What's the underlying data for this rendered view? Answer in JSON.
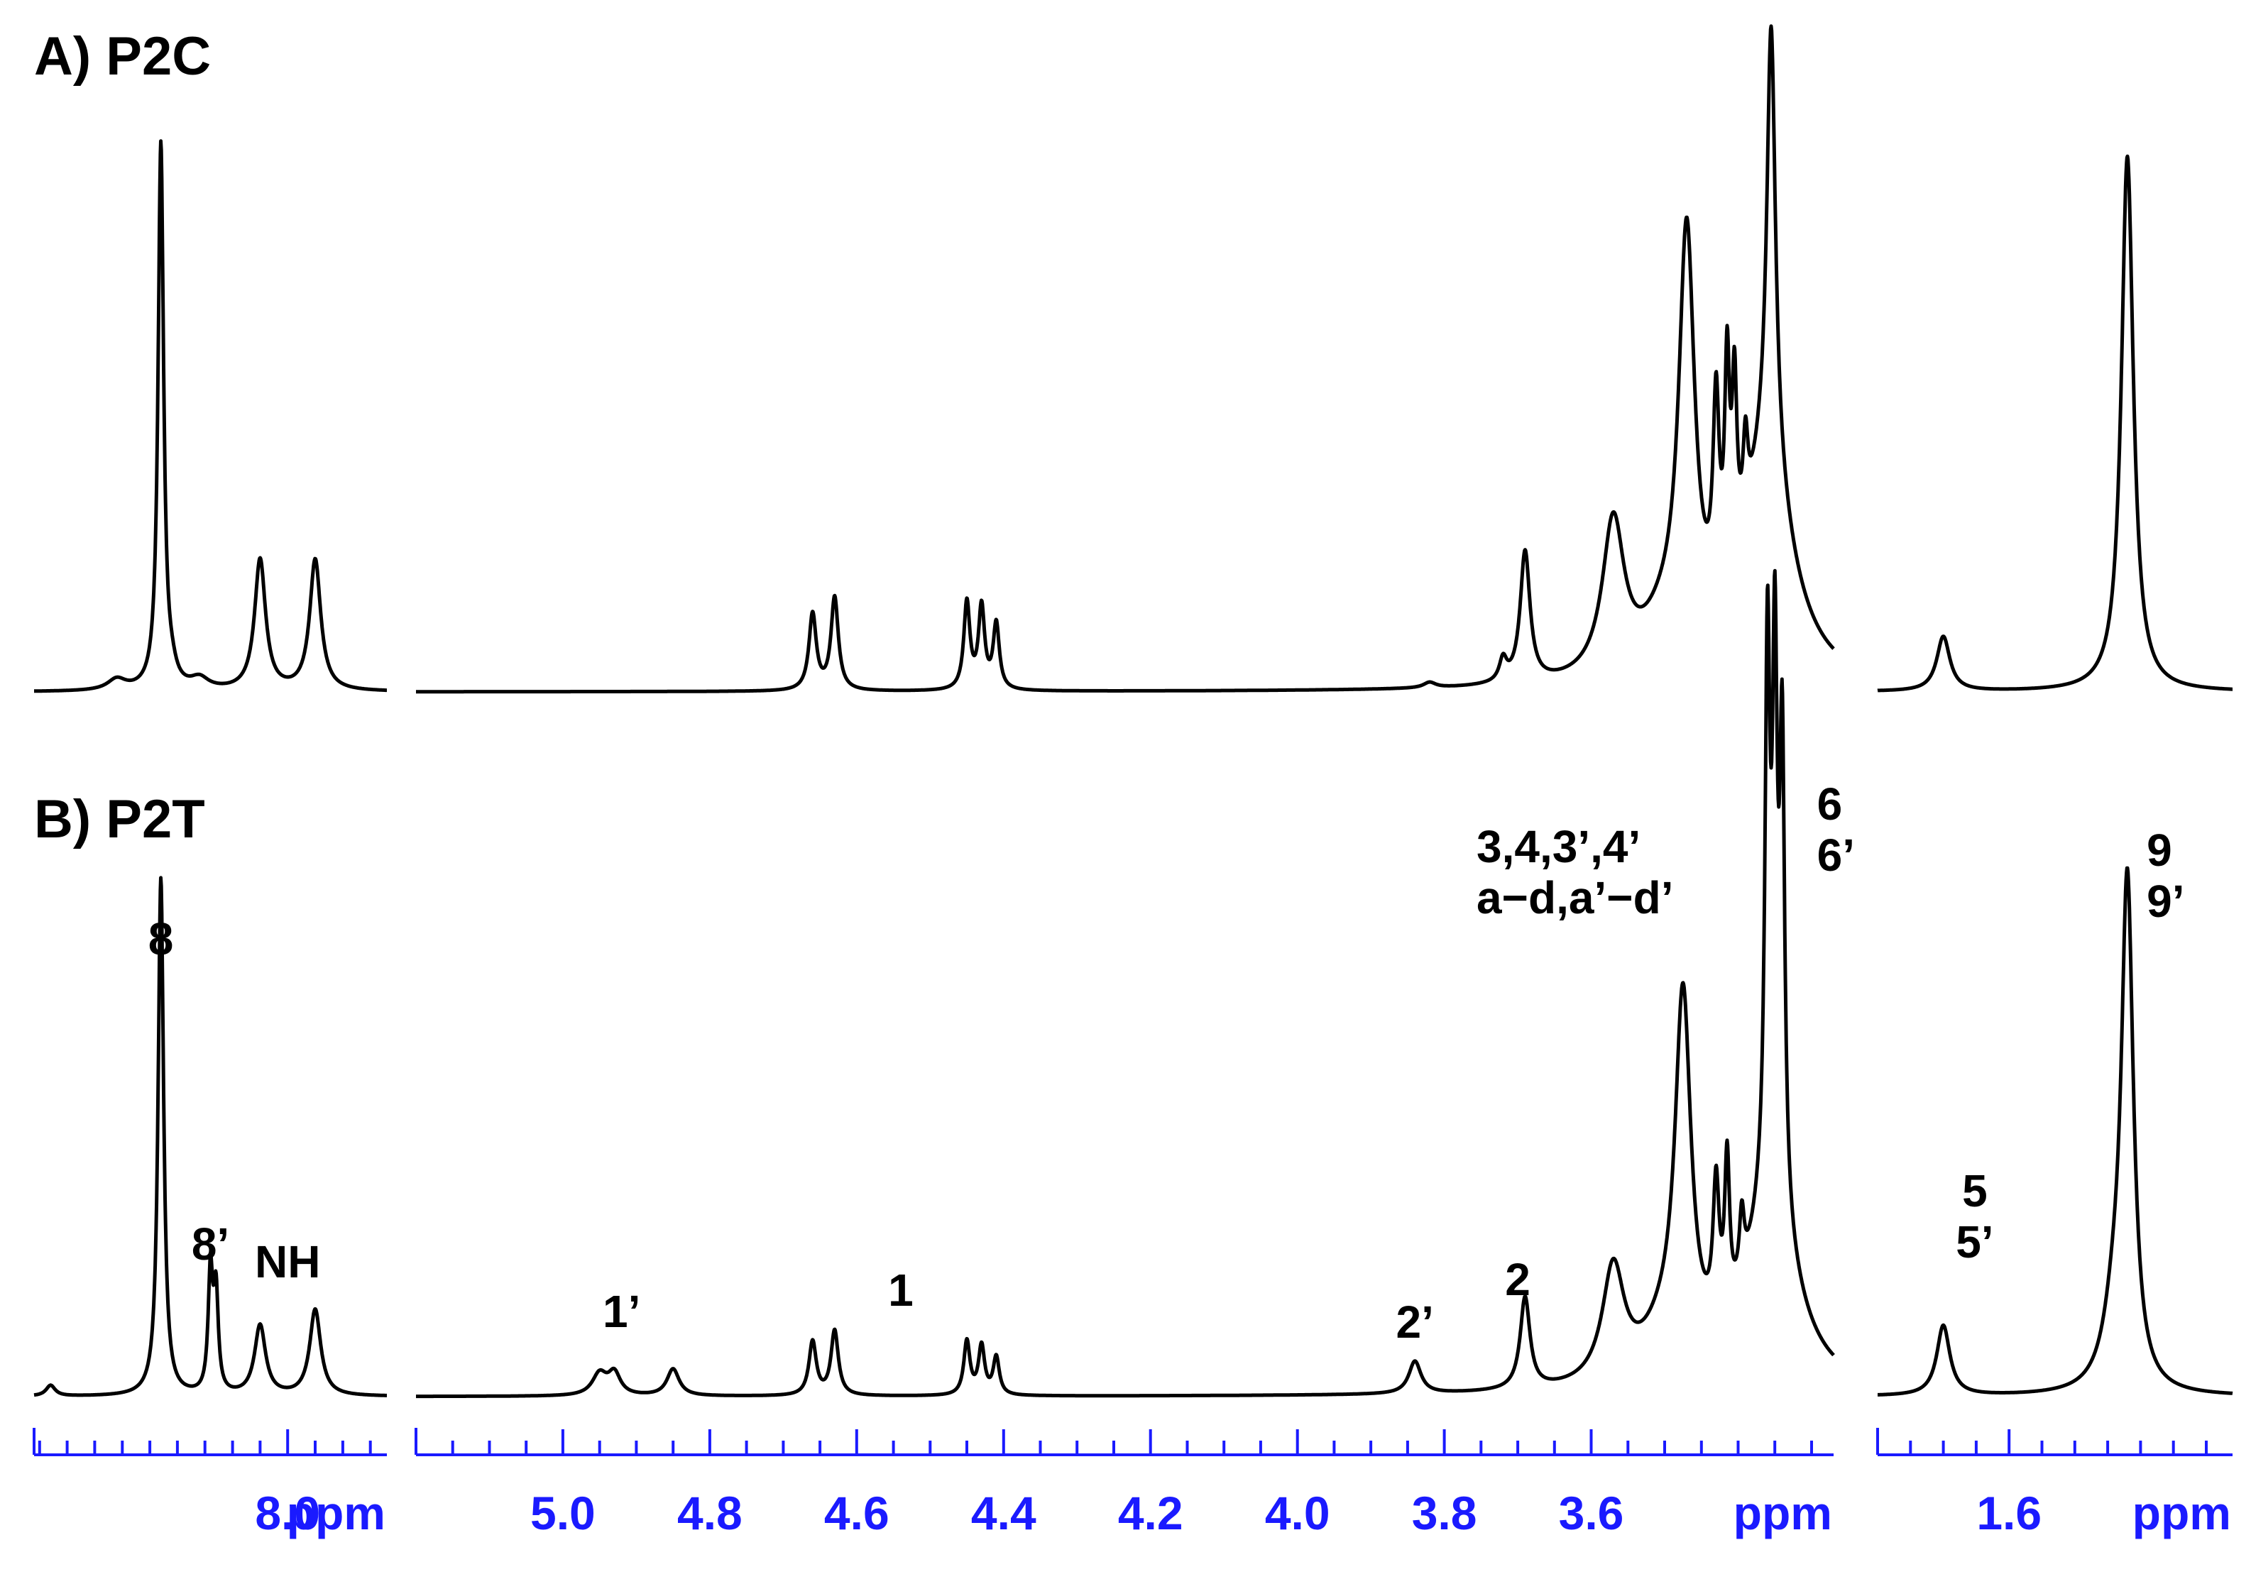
{
  "chart_data": {
    "type": "line",
    "chart_kind": "1H NMR spectra (stacked, broken ppm axis)",
    "panels": [
      {
        "id": "A",
        "title": "A) P2C"
      },
      {
        "id": "B",
        "title": "B) P2T"
      }
    ],
    "x_axis": {
      "unit_label": "ppm",
      "reversed": true,
      "segments": [
        {
          "range_ppm": [
            8.46,
            7.82
          ],
          "tick_labels": [
            "8.0"
          ],
          "unit_label": "ppm"
        },
        {
          "range_ppm": [
            5.2,
            3.27
          ],
          "tick_labels": [
            "5.0",
            "4.8",
            "4.6",
            "4.4",
            "4.2",
            "4.0",
            "3.8",
            "3.6"
          ],
          "unit_label": "ppm"
        },
        {
          "range_ppm": [
            1.8,
            1.26
          ],
          "tick_labels": [
            "1.6"
          ],
          "unit_label": "ppm"
        }
      ]
    },
    "series": [
      {
        "name": "P2C",
        "peaks": [
          {
            "ppm": 8.23,
            "height": 1.0,
            "width": 0.006
          },
          {
            "ppm": 8.21,
            "height": 0.02,
            "width": 0.01
          },
          {
            "ppm": 8.31,
            "height": 0.02,
            "width": 0.02
          },
          {
            "ppm": 8.16,
            "height": 0.02,
            "width": 0.02
          },
          {
            "ppm": 8.05,
            "height": 0.24,
            "width": 0.012
          },
          {
            "ppm": 7.95,
            "height": 0.24,
            "width": 0.012
          },
          {
            "ppm": 4.66,
            "height": 0.14,
            "width": 0.006
          },
          {
            "ppm": 4.63,
            "height": 0.17,
            "width": 0.006
          },
          {
            "ppm": 4.45,
            "height": 0.16,
            "width": 0.005
          },
          {
            "ppm": 4.43,
            "height": 0.15,
            "width": 0.005
          },
          {
            "ppm": 4.41,
            "height": 0.12,
            "width": 0.005
          },
          {
            "ppm": 3.82,
            "height": 0.01,
            "width": 0.01
          },
          {
            "ppm": 3.69,
            "height": 0.24,
            "width": 0.008
          },
          {
            "ppm": 3.72,
            "height": 0.04,
            "width": 0.006
          },
          {
            "ppm": 3.57,
            "height": 0.28,
            "width": 0.018
          },
          {
            "ppm": 3.5,
            "height": 0.08,
            "width": 0.04
          },
          {
            "ppm": 3.47,
            "height": 0.75,
            "width": 0.013
          },
          {
            "ppm": 3.43,
            "height": 0.35,
            "width": 0.005
          },
          {
            "ppm": 3.415,
            "height": 0.38,
            "width": 0.004
          },
          {
            "ppm": 3.405,
            "height": 0.32,
            "width": 0.004
          },
          {
            "ppm": 3.39,
            "height": 0.15,
            "width": 0.004
          },
          {
            "ppm": 3.355,
            "height": 0.8,
            "width": 0.007
          },
          {
            "ppm": 3.36,
            "height": 0.4,
            "width": 0.04
          },
          {
            "ppm": 1.7,
            "height": 0.1,
            "width": 0.012
          },
          {
            "ppm": 1.42,
            "height": 0.98,
            "width": 0.011
          }
        ]
      },
      {
        "name": "P2T",
        "peaks": [
          {
            "ppm": 8.23,
            "height": 0.96,
            "width": 0.006
          },
          {
            "ppm": 8.14,
            "height": 0.22,
            "width": 0.005
          },
          {
            "ppm": 8.13,
            "height": 0.18,
            "width": 0.005
          },
          {
            "ppm": 8.43,
            "height": 0.02,
            "width": 0.01
          },
          {
            "ppm": 8.05,
            "height": 0.13,
            "width": 0.012
          },
          {
            "ppm": 7.95,
            "height": 0.16,
            "width": 0.012
          },
          {
            "ppm": 4.95,
            "height": 0.04,
            "width": 0.012
          },
          {
            "ppm": 4.93,
            "height": 0.04,
            "width": 0.01
          },
          {
            "ppm": 4.85,
            "height": 0.05,
            "width": 0.01
          },
          {
            "ppm": 4.66,
            "height": 0.1,
            "width": 0.006
          },
          {
            "ppm": 4.63,
            "height": 0.12,
            "width": 0.006
          },
          {
            "ppm": 4.45,
            "height": 0.1,
            "width": 0.005
          },
          {
            "ppm": 4.43,
            "height": 0.09,
            "width": 0.005
          },
          {
            "ppm": 4.41,
            "height": 0.07,
            "width": 0.005
          },
          {
            "ppm": 3.84,
            "height": 0.06,
            "width": 0.01
          },
          {
            "ppm": 3.69,
            "height": 0.17,
            "width": 0.008
          },
          {
            "ppm": 3.57,
            "height": 0.21,
            "width": 0.018
          },
          {
            "ppm": 3.5,
            "height": 0.08,
            "width": 0.04
          },
          {
            "ppm": 3.475,
            "height": 0.66,
            "width": 0.013
          },
          {
            "ppm": 3.43,
            "height": 0.25,
            "width": 0.005
          },
          {
            "ppm": 3.415,
            "height": 0.28,
            "width": 0.004
          },
          {
            "ppm": 3.395,
            "height": 0.12,
            "width": 0.004
          },
          {
            "ppm": 3.36,
            "height": 0.98,
            "width": 0.004
          },
          {
            "ppm": 3.35,
            "height": 0.92,
            "width": 0.004
          },
          {
            "ppm": 3.34,
            "height": 0.84,
            "width": 0.004
          },
          {
            "ppm": 3.355,
            "height": 0.35,
            "width": 0.04
          },
          {
            "ppm": 1.7,
            "height": 0.13,
            "width": 0.012
          },
          {
            "ppm": 1.42,
            "height": 0.92,
            "width": 0.011
          },
          {
            "ppm": 1.44,
            "height": 0.12,
            "width": 0.02
          }
        ]
      }
    ],
    "annotations": [
      {
        "panel": "B",
        "lines": [
          "8"
        ],
        "ppm": 8.23
      },
      {
        "panel": "B",
        "lines": [
          "8’"
        ],
        "ppm": 8.14
      },
      {
        "panel": "B",
        "lines": [
          "NH"
        ],
        "ppm": 8.0
      },
      {
        "panel": "B",
        "lines": [
          "1’"
        ],
        "ppm": 4.92
      },
      {
        "panel": "B",
        "lines": [
          "1"
        ],
        "ppm": 4.54
      },
      {
        "panel": "B",
        "lines": [
          "2’"
        ],
        "ppm": 3.84
      },
      {
        "panel": "B",
        "lines": [
          "2"
        ],
        "ppm": 3.7
      },
      {
        "panel": "B",
        "lines": [
          "3,4,3’,4’",
          "a−d,a’−d’"
        ],
        "ppm": 3.48
      },
      {
        "panel": "B",
        "lines": [
          "6",
          "6’"
        ],
        "ppm": 3.31
      },
      {
        "panel": "B",
        "lines": [
          "5",
          "5’"
        ],
        "ppm": 1.69
      },
      {
        "panel": "B",
        "lines": [
          "9",
          "9’"
        ],
        "ppm": 1.41
      }
    ]
  }
}
